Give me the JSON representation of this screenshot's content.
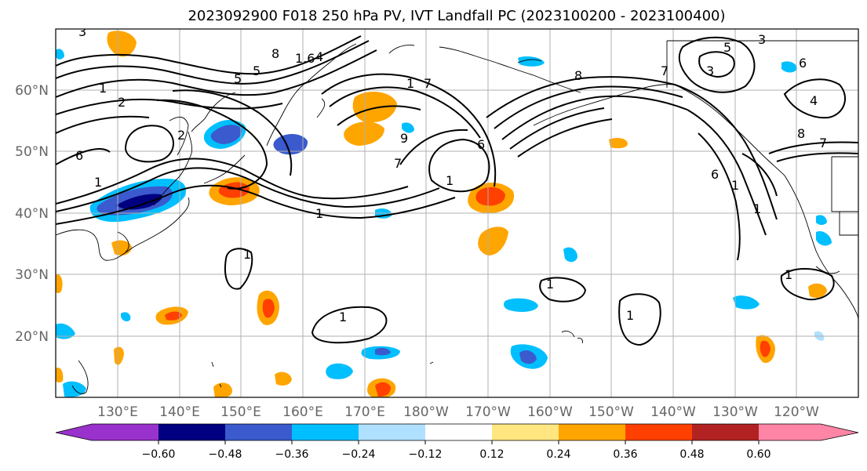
{
  "title": "2023092900 F018 250 hPa PV, IVT Landfall PC (2023100200 - 2023100400)",
  "map": {
    "lat_labels": [
      "60°N",
      "50°N",
      "40°N",
      "30°N",
      "20°N"
    ],
    "lon_labels": [
      "130°E",
      "140°E",
      "150°E",
      "160°E",
      "170°E",
      "180°W",
      "170°W",
      "160°W",
      "150°W",
      "140°W",
      "130°W",
      "120°W"
    ],
    "contour_labels": [
      "3",
      "5",
      "8",
      "1.6",
      "4",
      "1",
      "2",
      "6",
      "1",
      "1",
      "7",
      "9",
      "1",
      "5",
      "7",
      "1",
      "8",
      "1",
      "6",
      "1",
      "2",
      "1",
      "1",
      "1",
      "3",
      "7",
      "5",
      "6",
      "4",
      "3",
      "8",
      "7",
      "6",
      "1",
      "1"
    ]
  },
  "colorbar": {
    "ticks": [
      "−0.60",
      "−0.48",
      "−0.36",
      "−0.24",
      "−0.12",
      "0.12",
      "0.24",
      "0.36",
      "0.48",
      "0.60"
    ],
    "colors": [
      "#9932cc",
      "#000080",
      "#3a5acd",
      "#00bfff",
      "#b0e0ff",
      "#ffffff",
      "#ffe680",
      "#ffa500",
      "#ff4000",
      "#b22222",
      "#ff85a6"
    ]
  }
}
